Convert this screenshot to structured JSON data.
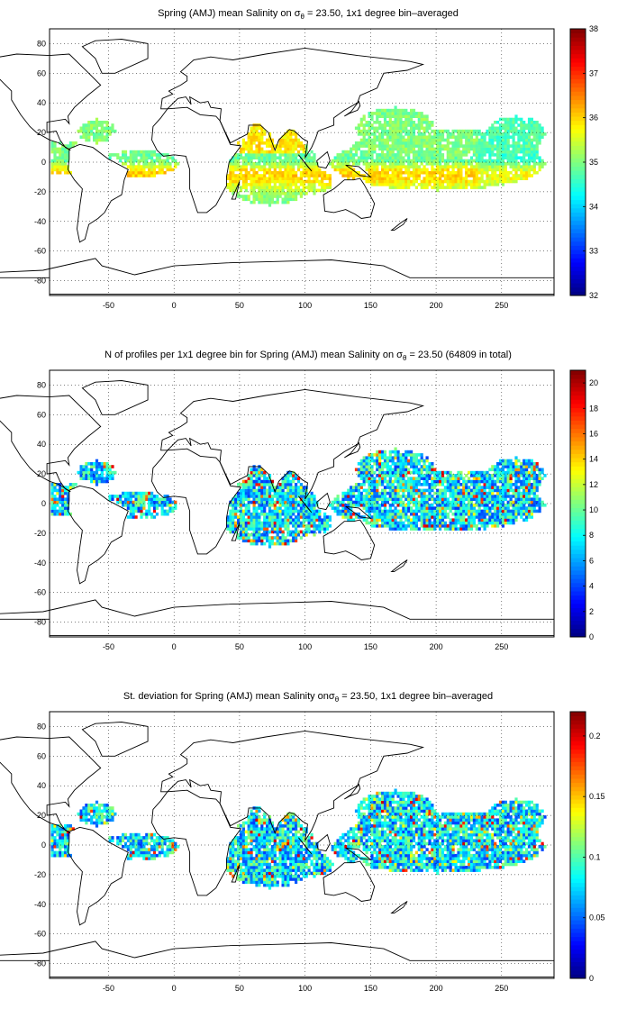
{
  "figure": {
    "panels": [
      {
        "id": "salinity",
        "title_prefix": "Spring (AMJ) mean Salinity on ",
        "title_sigma": "σ",
        "title_sub": "θ",
        "title_suffix": " = 23.50, 1x1 degree bin–averaged",
        "colorbar": {
          "min": 32,
          "max": 38,
          "ticks": [
            "32",
            "33",
            "34",
            "35",
            "36",
            "37",
            "38"
          ],
          "tick_values": [
            32,
            33,
            34,
            35,
            36,
            37,
            38
          ]
        },
        "seed": 11
      },
      {
        "id": "counts",
        "title_prefix": "N of profiles per 1x1 degree bin for Spring (AMJ) mean Salinity on ",
        "title_sigma": "σ",
        "title_sub": "θ",
        "title_suffix": " = 23.50 (64809 in total)",
        "colorbar": {
          "min": 0,
          "max": 21,
          "ticks": [
            "0",
            "2",
            "4",
            "6",
            "8",
            "10",
            "12",
            "14",
            "16",
            "18",
            "20"
          ],
          "tick_values": [
            0,
            2,
            4,
            6,
            8,
            10,
            12,
            14,
            16,
            18,
            20
          ]
        },
        "seed": 23
      },
      {
        "id": "stdev",
        "title_prefix": "St. deviation for Spring (AMJ) mean Salinity on",
        "title_sigma": "σ",
        "title_sub": "θ",
        "title_suffix": " = 23.50, 1x1 degree bin–averaged",
        "colorbar": {
          "min": 0,
          "max": 0.22,
          "ticks": [
            "0",
            "0.05",
            "0.1",
            "0.15",
            "0.2"
          ],
          "tick_values": [
            0,
            0.05,
            0.1,
            0.15,
            0.2
          ]
        },
        "seed": 37
      }
    ],
    "x_axis": {
      "min": -95,
      "max": 290,
      "ticks": [
        "-50",
        "0",
        "50",
        "100",
        "150",
        "200",
        "250"
      ],
      "tick_values": [
        -50,
        0,
        50,
        100,
        150,
        200,
        250
      ]
    },
    "y_axis": {
      "min": -90,
      "max": 90,
      "ticks": [
        "80",
        "60",
        "40",
        "20",
        "0",
        "-20",
        "-40",
        "-60",
        "-80"
      ],
      "tick_values": [
        80,
        60,
        40,
        20,
        0,
        -20,
        -40,
        -60,
        -80
      ]
    },
    "grid": "dotted",
    "colormap": "jet"
  }
}
